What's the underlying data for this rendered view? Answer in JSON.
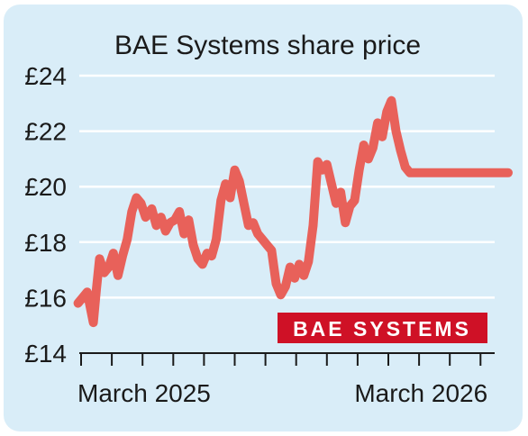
{
  "chart_data": {
    "type": "line",
    "title": "BAE Systems share price",
    "xlabel": "",
    "ylabel": "",
    "ylim": [
      14,
      24
    ],
    "y_ticks": [
      14,
      16,
      18,
      20,
      22,
      24
    ],
    "y_tick_labels": [
      "£14",
      "£16",
      "£18",
      "£20",
      "£22",
      "£24"
    ],
    "x_tick_labels": [
      {
        "label": "March 2025",
        "month_index": 0
      },
      {
        "label": "March 2026",
        "month_index": 12
      }
    ],
    "logo_text": "BAE SYSTEMS",
    "colors": {
      "background": "#d9edf8",
      "gridline": "#ffffff",
      "line": "#e8615a",
      "logo_bg": "#cf1126",
      "logo_text": "#ffffff"
    },
    "grid": true,
    "series": [
      {
        "x": [
          -0.1,
          0.05,
          0.2,
          0.4,
          0.5,
          0.6,
          0.75,
          0.9,
          1.05,
          1.2,
          1.35,
          1.5,
          1.65,
          1.8,
          1.95,
          2.1,
          2.3,
          2.45,
          2.6,
          2.75,
          2.9,
          3.05,
          3.2,
          3.35,
          3.5,
          3.65,
          3.8,
          3.95,
          4.1,
          4.25,
          4.4,
          4.55,
          4.7,
          4.85,
          5.0,
          5.15,
          5.3,
          5.45,
          5.6,
          5.75,
          5.9,
          6.05,
          6.2,
          6.35,
          6.5,
          6.65,
          6.8,
          6.95,
          7.1,
          7.25,
          7.4,
          7.55,
          7.7,
          7.85,
          8.0,
          8.15,
          8.3,
          8.45,
          8.6,
          8.75,
          8.9,
          9.05,
          9.2,
          9.35,
          9.5,
          9.65,
          9.8,
          9.95,
          10.1,
          10.25,
          10.4,
          10.55,
          10.7,
          10.85,
          11.0,
          11.15,
          11.3,
          11.45,
          11.6,
          11.75,
          11.9,
          12.05,
          12.2,
          12.35,
          12.5,
          12.65,
          12.8,
          12.95,
          13.1,
          13.25,
          13.4,
          13.55,
          13.7,
          13.8,
          13.9
        ],
        "values": [
          15.8,
          16.0,
          16.2,
          15.1,
          16.3,
          17.4,
          16.9,
          17.1,
          17.6,
          16.8,
          17.5,
          18.1,
          19.1,
          19.6,
          19.4,
          18.9,
          19.2,
          18.6,
          18.9,
          18.4,
          18.7,
          18.8,
          19.1,
          18.3,
          18.8,
          17.9,
          17.4,
          17.2,
          17.6,
          17.5,
          18.1,
          19.5,
          20.1,
          19.6,
          20.6,
          20.2,
          19.4,
          18.6,
          18.7,
          18.3,
          18.1,
          17.9,
          17.7,
          16.5,
          16.1,
          16.4,
          17.1,
          16.7,
          17.2,
          16.8,
          17.3,
          18.6,
          20.9,
          20.6,
          20.8,
          20.1,
          19.4,
          19.8,
          18.7,
          19.3,
          19.5,
          20.6,
          21.5,
          21.0,
          21.4,
          22.3,
          21.8,
          22.7,
          23.1,
          22.0,
          21.3,
          20.7,
          20.5,
          20.5,
          20.5,
          20.5,
          20.5,
          20.5,
          20.5,
          20.5,
          20.5,
          20.5,
          20.5,
          20.5,
          20.5,
          20.5,
          20.5,
          20.5,
          20.5,
          20.5,
          20.5,
          20.5,
          20.5,
          20.5,
          20.5
        ]
      }
    ]
  }
}
